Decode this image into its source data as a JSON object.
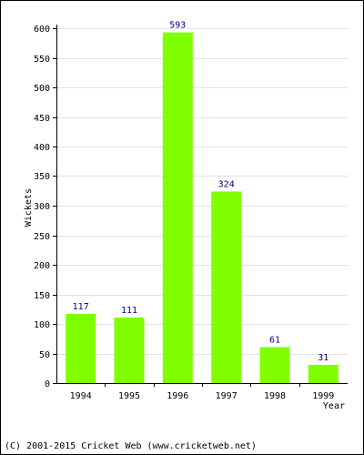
{
  "chart_data": {
    "type": "bar",
    "categories": [
      "1994",
      "1995",
      "1996",
      "1997",
      "1998",
      "1999"
    ],
    "values": [
      117,
      111,
      593,
      324,
      61,
      31
    ],
    "xlabel": "Year",
    "ylabel": "Wickets",
    "ylim": [
      0,
      600
    ],
    "yticks": [
      0,
      50,
      100,
      150,
      200,
      250,
      300,
      350,
      400,
      450,
      500,
      550,
      600
    ],
    "grid": true,
    "bar_color": "#80ff00",
    "label_color": "#000080"
  },
  "footer": "(C) 2001-2015 Cricket Web (www.cricketweb.net)"
}
